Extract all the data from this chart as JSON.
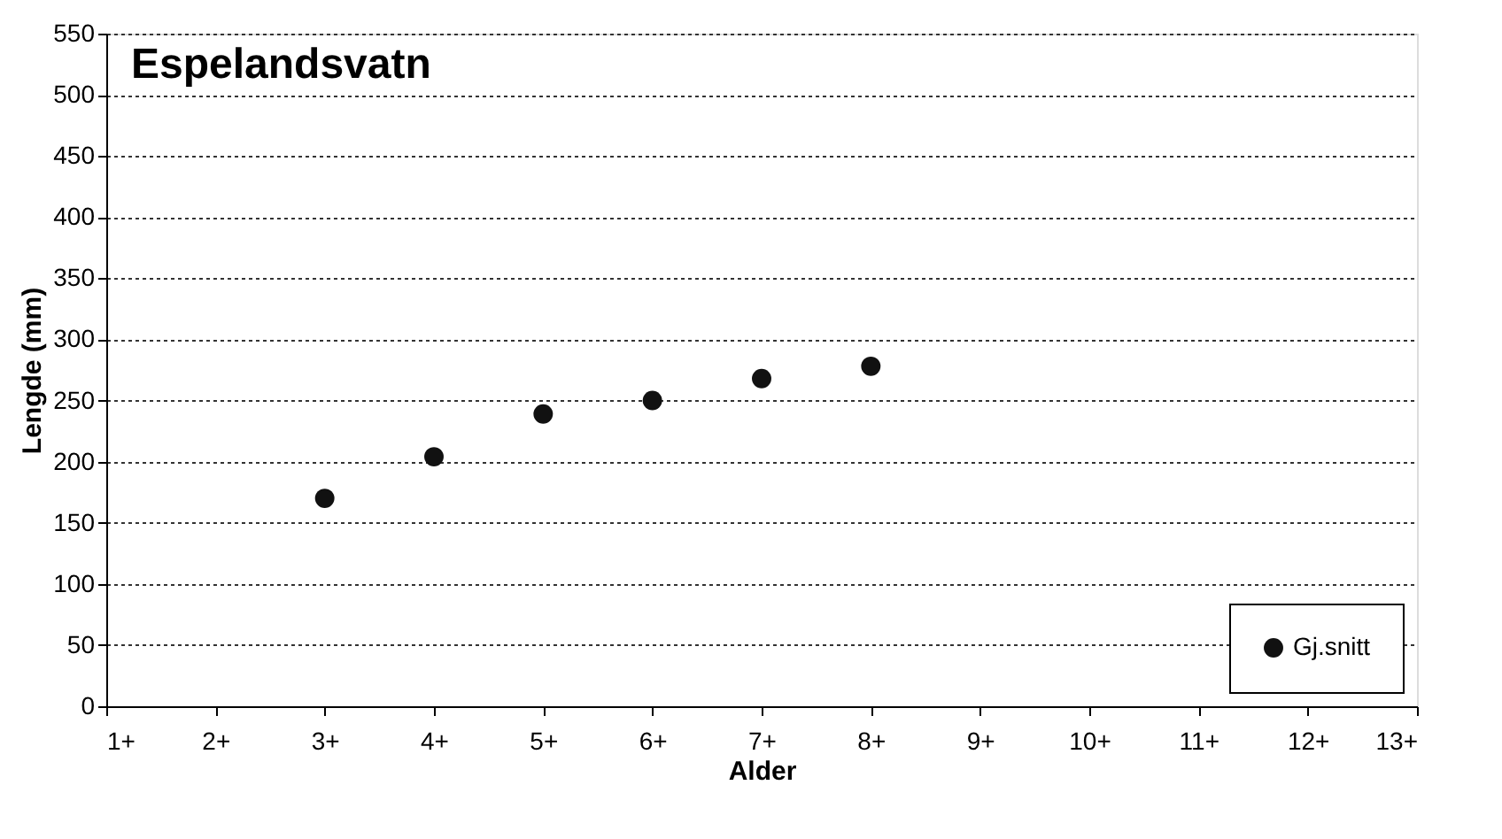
{
  "chart_data": {
    "type": "scatter",
    "title": "Espelandsvatn",
    "xlabel": "Alder",
    "ylabel": "Lengde (mm)",
    "categories": [
      "1+",
      "2+",
      "3+",
      "4+",
      "5+",
      "6+",
      "7+",
      "8+",
      "9+",
      "10+",
      "11+",
      "12+",
      "13+"
    ],
    "series": [
      {
        "name": "Gj.snitt",
        "color": "#111111",
        "values": [
          null,
          null,
          170,
          204,
          239,
          250,
          268,
          278,
          null,
          null,
          null,
          null,
          null
        ]
      }
    ],
    "ylim": [
      0,
      550
    ],
    "yticks": [
      0,
      50,
      100,
      150,
      200,
      250,
      300,
      350,
      400,
      450,
      500,
      550
    ],
    "grid": "y",
    "legend": "bottom right",
    "marker": "circle"
  }
}
